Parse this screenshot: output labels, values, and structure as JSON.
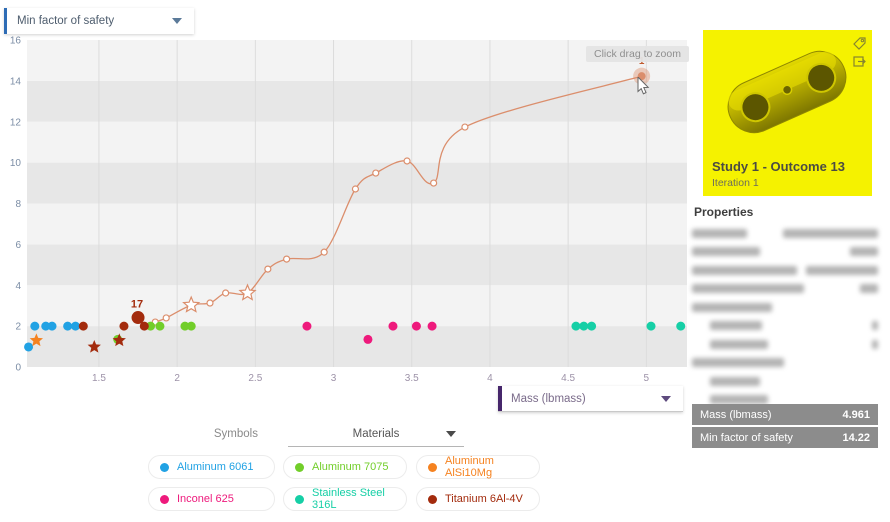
{
  "y_dropdown": {
    "label": "Min factor of safety"
  },
  "x_dropdown": {
    "label": "Mass (lbmass)"
  },
  "zoom_tooltip": "Click drag to zoom",
  "chart_data": {
    "type": "scatter",
    "title": "",
    "xlabel": "Mass (lbmass)",
    "ylabel": "Min factor of safety",
    "xlim": [
      1.04,
      5.26
    ],
    "ylim": [
      0,
      16
    ],
    "x_tick_values": [
      1.5,
      2,
      2.5,
      3,
      3.5,
      4,
      4.5,
      5
    ],
    "x_tick_labels": [
      "1.5",
      "2",
      "2.5",
      "3",
      "3.5",
      "4",
      "4.5",
      "5"
    ],
    "y_tick_values": [
      0,
      2,
      4,
      6,
      8,
      10,
      12,
      14,
      16
    ],
    "band_light": "#F3F3F3",
    "band_dark": "#E7E7E7",
    "gridline_color": "#DCDCDC",
    "x_tick_color": "#9D92A8",
    "y_tick_color": "#7B8DA5",
    "legend_position": "bottom",
    "series": [
      {
        "name": "Aluminum 6061",
        "color": "#21A2E4",
        "points": [
          {
            "x": 1.05,
            "y": 0.98
          },
          {
            "x": 1.09,
            "y": 2
          },
          {
            "x": 1.16,
            "y": 2
          },
          {
            "x": 1.2,
            "y": 2
          },
          {
            "x": 1.3,
            "y": 2
          },
          {
            "x": 1.35,
            "y": 2
          }
        ]
      },
      {
        "name": "Aluminum 7075",
        "color": "#72CE2A",
        "points": [
          {
            "x": 1.62,
            "y": 1.35
          },
          {
            "x": 1.83,
            "y": 2
          },
          {
            "x": 1.89,
            "y": 2
          },
          {
            "x": 2.05,
            "y": 2
          },
          {
            "x": 2.09,
            "y": 2
          }
        ]
      },
      {
        "name": "Aluminum AlSi10Mg",
        "color": "#F58220",
        "points": [
          {
            "x": 1.1,
            "y": 1.3,
            "shape": "star"
          }
        ]
      },
      {
        "name": "Inconel 625",
        "color": "#EE1A7C",
        "points": [
          {
            "x": 2.83,
            "y": 2
          },
          {
            "x": 3.22,
            "y": 1.35
          },
          {
            "x": 3.38,
            "y": 2
          },
          {
            "x": 3.53,
            "y": 2
          },
          {
            "x": 3.63,
            "y": 2
          }
        ]
      },
      {
        "name": "Stainless Steel 316L",
        "color": "#16CFA6",
        "points": [
          {
            "x": 4.55,
            "y": 2
          },
          {
            "x": 4.6,
            "y": 2
          },
          {
            "x": 4.65,
            "y": 2
          },
          {
            "x": 5.03,
            "y": 2
          },
          {
            "x": 5.22,
            "y": 2
          }
        ]
      },
      {
        "name": "Titanium 6Al-4V",
        "color": "#A32B0D",
        "points": [
          {
            "x": 1.4,
            "y": 2
          },
          {
            "x": 1.47,
            "y": 0.98,
            "shape": "star"
          },
          {
            "x": 1.63,
            "y": 1.3,
            "shape": "star"
          },
          {
            "x": 1.66,
            "y": 2
          },
          {
            "x": 1.75,
            "y": 2.42,
            "r": 6.5,
            "label": "17"
          },
          {
            "x": 1.79,
            "y": 2
          }
        ]
      }
    ],
    "iteration_line": {
      "color": "#DB8E6C",
      "halo_color": "rgba(221,133,95,0.38)",
      "points": [
        {
          "x": 1.8,
          "y": 2.05,
          "marker": "none"
        },
        {
          "x": 1.86,
          "y": 2.2,
          "marker": "circle"
        },
        {
          "x": 1.93,
          "y": 2.4,
          "marker": "circle"
        },
        {
          "x": 2.09,
          "y": 3.03,
          "marker": "star"
        },
        {
          "x": 2.21,
          "y": 3.13,
          "marker": "circle"
        },
        {
          "x": 2.31,
          "y": 3.62,
          "marker": "circle"
        },
        {
          "x": 2.45,
          "y": 3.62,
          "marker": "star"
        },
        {
          "x": 2.58,
          "y": 4.79,
          "marker": "circle"
        },
        {
          "x": 2.7,
          "y": 5.28,
          "marker": "circle"
        },
        {
          "x": 2.94,
          "y": 5.62,
          "marker": "circle"
        },
        {
          "x": 3.14,
          "y": 8.71,
          "marker": "circle"
        },
        {
          "x": 3.27,
          "y": 9.49,
          "marker": "circle"
        },
        {
          "x": 3.47,
          "y": 10.08,
          "marker": "circle"
        },
        {
          "x": 3.64,
          "y": 9.0,
          "marker": "circle"
        },
        {
          "x": 3.84,
          "y": 11.74,
          "marker": "circle"
        },
        {
          "x": 4.97,
          "y": 14.23,
          "marker": "highlight",
          "label": "1"
        }
      ]
    }
  },
  "legend": {
    "symbols_label": "Symbols",
    "dropdown_label": "Materials",
    "items": [
      {
        "label": "Aluminum 6061",
        "color": "#21A2E4"
      },
      {
        "label": "Aluminum 7075",
        "color": "#72CE2A"
      },
      {
        "label": "Aluminum AlSi10Mg",
        "color": "#F58220"
      },
      {
        "label": "Inconel 625",
        "color": "#EE1A7C"
      },
      {
        "label": "Stainless Steel 316L",
        "color": "#16CFA6"
      },
      {
        "label": "Titanium 6Al-4V",
        "color": "#A32B0D"
      }
    ]
  },
  "panel": {
    "card": {
      "title": "Study 1 - Outcome 13",
      "subtitle": "Iteration 1",
      "background": "#F5F200",
      "icons": [
        "tag-icon",
        "export-icon"
      ]
    },
    "properties_title": "Properties",
    "stats": [
      {
        "label": "Mass (lbmass)",
        "value": "4.961"
      },
      {
        "label": "Min factor of safety",
        "value": "14.22"
      }
    ]
  }
}
